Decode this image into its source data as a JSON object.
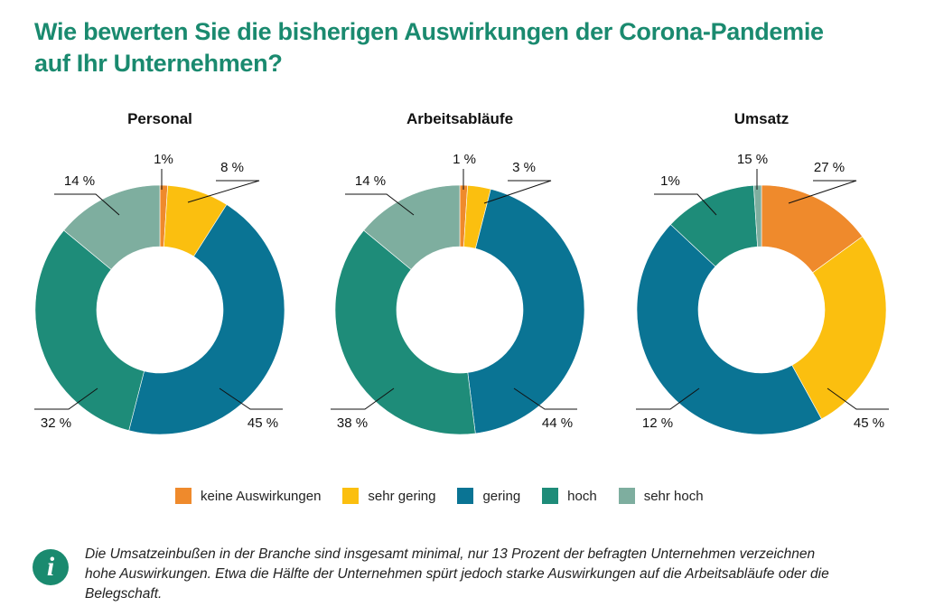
{
  "header": {
    "title_line1": "Wie bewerten Sie die bisherigen Auswirkungen der Corona-Pandemie",
    "title_line2": "auf Ihr Unternehmen?"
  },
  "legend": [
    {
      "label": "keine Auswirkungen",
      "color": "#ef8a2c"
    },
    {
      "label": "sehr gering",
      "color": "#fbbf0f"
    },
    {
      "label": "gering",
      "color": "#0a7494"
    },
    {
      "label": "hoch",
      "color": "#1e8c79"
    },
    {
      "label": "sehr hoch",
      "color": "#7eae9f"
    }
  ],
  "chart_data": [
    {
      "type": "pie",
      "title": "Personal",
      "categories": [
        "keine Auswirkungen",
        "sehr gering",
        "gering",
        "hoch",
        "sehr hoch"
      ],
      "values": [
        1,
        8,
        45,
        32,
        14
      ],
      "labels": [
        "1%",
        "8 %",
        "45 %",
        "32 %",
        "14 %"
      ]
    },
    {
      "type": "pie",
      "title": "Arbeitsabläufe",
      "categories": [
        "keine Auswirkungen",
        "sehr gering",
        "gering",
        "hoch",
        "sehr hoch"
      ],
      "values": [
        1,
        3,
        44,
        38,
        14
      ],
      "labels": [
        "1 %",
        "3 %",
        "44 %",
        "38 %",
        "14 %"
      ]
    },
    {
      "type": "pie",
      "title": "Umsatz",
      "categories": [
        "keine Auswirkungen",
        "sehr gering",
        "gering",
        "hoch",
        "sehr hoch"
      ],
      "values": [
        15,
        27,
        45,
        12,
        1
      ],
      "labels": [
        "15 %",
        "27 %",
        "45 %",
        "12 %",
        "1%"
      ]
    }
  ],
  "info": {
    "icon": "info-icon",
    "icon_glyph": "i",
    "text": "Die Umsatzeinbußen in der Branche sind insgesamt minimal, nur 13 Prozent der befragten Unternehmen verzeichnen hohe Auswirkungen. Etwa die Hälfte der Unternehmen spürt jedoch starke Auswirkungen auf die Arbeitsabläufe oder die Belegschaft."
  }
}
